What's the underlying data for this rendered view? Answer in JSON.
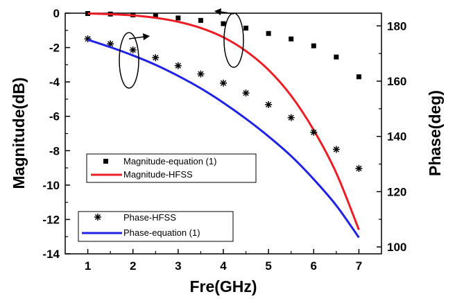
{
  "chart_data": {
    "type": "line",
    "xlabel": "Fre(GHz)",
    "ylabel_left": "Magnitude(dB)",
    "ylabel_right": "Phase(deg)",
    "xlim": [
      0.5,
      7.5
    ],
    "ylim_left": [
      -14,
      0
    ],
    "ylim_right": [
      97.5,
      184.6
    ],
    "x_ticks": [
      "1",
      "2",
      "3",
      "4",
      "5",
      "6",
      "7"
    ],
    "y_left_ticks": [
      "0",
      "-2",
      "-4",
      "-6",
      "-8",
      "-10",
      "-12",
      "-14"
    ],
    "y_right_ticks": [
      "100",
      "120",
      "140",
      "160",
      "180"
    ],
    "grid": false,
    "series": [
      {
        "name": "Magnitude-equation (1)",
        "axis": "left",
        "style": "square-markers",
        "color": "#000000",
        "x": [
          1,
          1.5,
          2,
          2.5,
          3,
          3.5,
          4,
          4.5,
          5,
          5.5,
          6,
          6.5,
          7
        ],
        "y": [
          -0.02,
          -0.05,
          -0.1,
          -0.17,
          -0.28,
          -0.42,
          -0.61,
          -0.87,
          -1.18,
          -1.5,
          -1.9,
          -2.55,
          -3.7
        ]
      },
      {
        "name": "Magnitude-HFSS",
        "axis": "left",
        "style": "line",
        "color": "#ee1c25",
        "x": [
          1,
          1.5,
          2,
          2.5,
          3,
          3.5,
          4,
          4.5,
          5,
          5.5,
          6,
          6.5,
          7
        ],
        "y": [
          -0.02,
          -0.06,
          -0.13,
          -0.27,
          -0.5,
          -0.86,
          -1.4,
          -2.2,
          -3.3,
          -4.8,
          -6.8,
          -9.3,
          -12.6
        ]
      },
      {
        "name": "Phase-HFSS",
        "axis": "right",
        "style": "asterisk-markers",
        "color": "#000000",
        "x": [
          1,
          1.5,
          2,
          2.5,
          3,
          3.5,
          4,
          4.5,
          5,
          5.5,
          6,
          6.5,
          7
        ],
        "y": [
          175.3,
          173.5,
          171.3,
          168.5,
          165.6,
          162.6,
          159.3,
          155.7,
          151.5,
          146.8,
          141.5,
          135.3,
          128.4
        ]
      },
      {
        "name": "Phase-equation (1)",
        "axis": "right",
        "style": "line",
        "color": "#1f22e6",
        "x": [
          1,
          1.5,
          2,
          2.5,
          3,
          3.5,
          4,
          4.5,
          5,
          5.5,
          6,
          6.5,
          7
        ],
        "y": [
          175.0,
          172.3,
          169.3,
          165.9,
          161.9,
          157.4,
          152.2,
          146.4,
          140.0,
          132.9,
          124.5,
          115.0,
          103.4
        ]
      }
    ],
    "legends": [
      {
        "placement": "middle-left",
        "entries": [
          "Magnitude-equation (1)",
          "Magnitude-HFSS"
        ]
      },
      {
        "placement": "bottom-left",
        "entries": [
          "Phase-HFSS",
          "Phase-equation (1)"
        ]
      }
    ],
    "annotations": [
      {
        "type": "ellipse-with-arrow",
        "direction": "right",
        "meaning": "phase curves refer to right axis"
      },
      {
        "type": "ellipse-with-arrow",
        "direction": "left",
        "meaning": "magnitude curves refer to left axis"
      }
    ]
  }
}
